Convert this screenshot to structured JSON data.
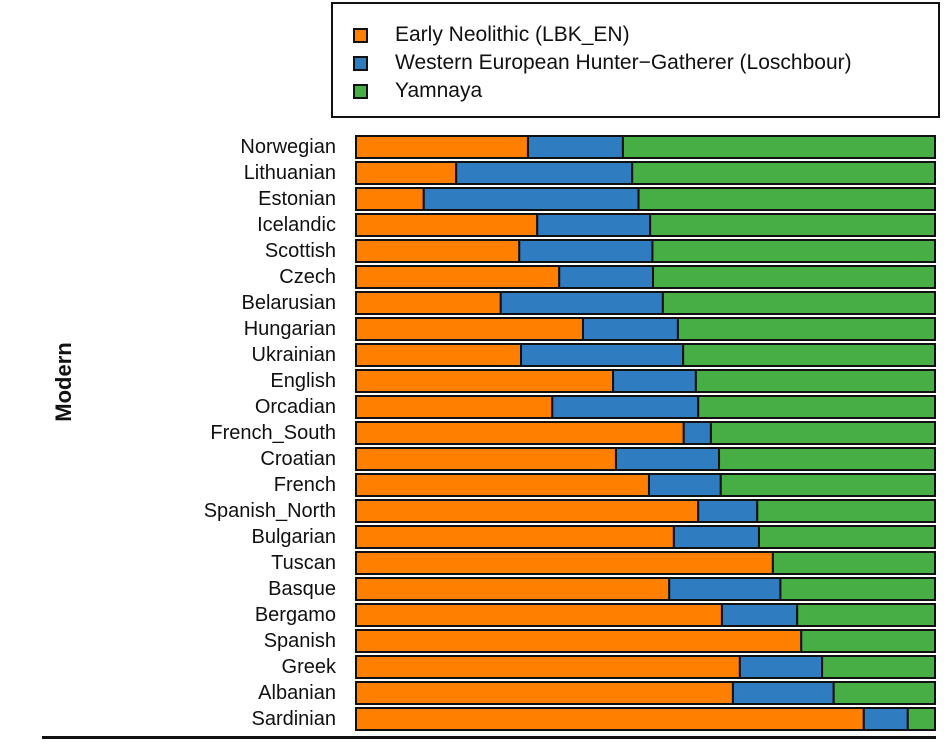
{
  "chart_data": {
    "type": "bar",
    "orientation": "horizontal",
    "stacked": true,
    "normalized": true,
    "title": "",
    "xlabel": "",
    "ylabel": "Modern",
    "xlim": [
      0,
      1
    ],
    "grid": false,
    "legend_position": "top-right",
    "categories": [
      "Norwegian",
      "Lithuanian",
      "Estonian",
      "Icelandic",
      "Scottish",
      "Czech",
      "Belarusian",
      "Hungarian",
      "Ukrainian",
      "English",
      "Orcadian",
      "French_South",
      "Croatian",
      "French",
      "Spanish_North",
      "Bulgarian",
      "Tuscan",
      "Basque",
      "Bergamo",
      "Spanish",
      "Greek",
      "Albanian",
      "Sardinian"
    ],
    "series": [
      {
        "name": "Early Neolithic (LBK_EN)",
        "color": "#FF8000",
        "values": [
          0.297,
          0.173,
          0.117,
          0.313,
          0.282,
          0.351,
          0.25,
          0.392,
          0.285,
          0.444,
          0.339,
          0.566,
          0.449,
          0.506,
          0.591,
          0.549,
          0.72,
          0.541,
          0.632,
          0.769,
          0.663,
          0.651,
          0.877
        ]
      },
      {
        "name": "Western European Hunter−Gatherer (Loschbour)",
        "color": "#2F7CC0",
        "values": [
          0.164,
          0.304,
          0.371,
          0.195,
          0.23,
          0.162,
          0.28,
          0.164,
          0.28,
          0.143,
          0.252,
          0.047,
          0.178,
          0.124,
          0.102,
          0.147,
          0.0,
          0.192,
          0.13,
          0.0,
          0.142,
          0.174,
          0.076
        ]
      },
      {
        "name": "Yamnaya",
        "color": "#47AD45",
        "values": [
          0.539,
          0.523,
          0.512,
          0.492,
          0.488,
          0.487,
          0.47,
          0.444,
          0.435,
          0.413,
          0.409,
          0.387,
          0.373,
          0.37,
          0.307,
          0.304,
          0.28,
          0.267,
          0.238,
          0.231,
          0.195,
          0.175,
          0.047
        ]
      }
    ]
  }
}
